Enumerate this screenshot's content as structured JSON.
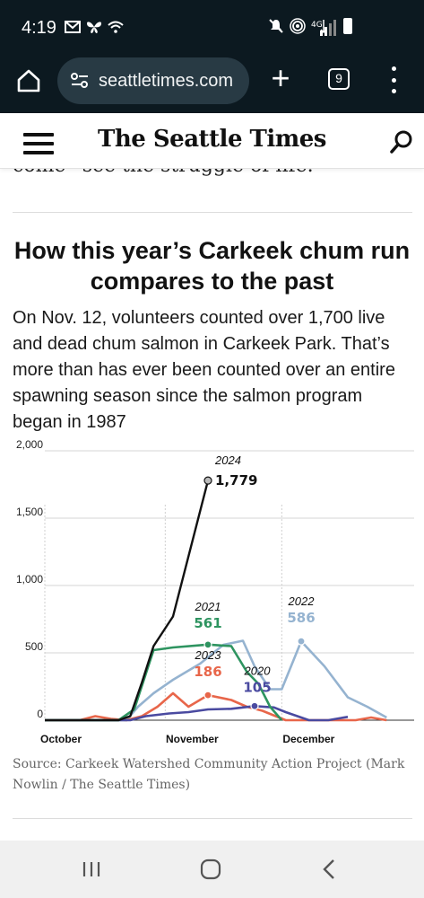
{
  "status": {
    "time": "4:19"
  },
  "browser": {
    "url": "seattletimes.com",
    "tab_count": "9"
  },
  "site": {
    "logo": "The Seattle Times"
  },
  "article": {
    "cutoff_text": "come” see the struggle of life.”",
    "headline": "How this year’s Carkeek chum run compares to the past",
    "intro": "On Nov. 12, volunteers counted over 1,700 live and dead chum salmon in Carkeek Park. That’s more than has ever been counted over an entire spawning season since the salmon program began in 1987",
    "source": "Source: Carkeek Watershed Community Action Project (Mark Nowlin / The Seattle Times)"
  },
  "chart_data": {
    "type": "line",
    "title": "How this year’s Carkeek chum run compares to the past",
    "xlabel": "",
    "ylabel": "",
    "ylim": [
      0,
      2000
    ],
    "yticks": [
      0,
      500,
      1000,
      1500,
      2000
    ],
    "ytick_labels": [
      "0",
      "500",
      "1,000",
      "1,500",
      "2,000"
    ],
    "xticks": [
      {
        "label": "October",
        "date": "Oct 1"
      },
      {
        "label": "November",
        "date": "Nov 1"
      },
      {
        "label": "December",
        "date": "Dec 1"
      }
    ],
    "x_unit": "date",
    "grid": true,
    "series": [
      {
        "name": "2024",
        "color": "#111111",
        "highlight_value": "1,779",
        "label_color": "#111111",
        "points": [
          [
            "Oct 1",
            0
          ],
          [
            "Oct 20",
            0
          ],
          [
            "Oct 23",
            30
          ],
          [
            "Oct 26",
            280
          ],
          [
            "Oct 29",
            550
          ],
          [
            "Nov 3",
            770
          ],
          [
            "Nov 12",
            1779
          ]
        ]
      },
      {
        "name": "2021",
        "color": "#2e9460",
        "highlight_value": "561",
        "label_color": "#2e9460",
        "points": [
          [
            "Oct 1",
            0
          ],
          [
            "Oct 20",
            0
          ],
          [
            "Oct 24",
            80
          ],
          [
            "Oct 29",
            520
          ],
          [
            "Nov 3",
            540
          ],
          [
            "Nov 12",
            561
          ],
          [
            "Nov 18",
            550
          ],
          [
            "Nov 22",
            360
          ],
          [
            "Nov 25",
            270
          ],
          [
            "Nov 28",
            100
          ],
          [
            "Dec 1",
            0
          ]
        ]
      },
      {
        "name": "2022",
        "color": "#95b3d0",
        "highlight_value": "586",
        "label_color": "#95b3d0",
        "points": [
          [
            "Oct 1",
            0
          ],
          [
            "Oct 22",
            0
          ],
          [
            "Oct 25",
            100
          ],
          [
            "Oct 29",
            200
          ],
          [
            "Nov 3",
            300
          ],
          [
            "Nov 10",
            420
          ],
          [
            "Nov 16",
            560
          ],
          [
            "Nov 21",
            590
          ],
          [
            "Nov 24",
            400
          ],
          [
            "Nov 28",
            230
          ],
          [
            "Dec 1",
            230
          ],
          [
            "Dec 6",
            586
          ],
          [
            "Dec 12",
            400
          ],
          [
            "Dec 18",
            170
          ],
          [
            "Dec 23",
            100
          ],
          [
            "Dec 28",
            20
          ]
        ]
      },
      {
        "name": "2023",
        "color": "#e8664a",
        "highlight_value": "186",
        "label_color": "#e8664a",
        "points": [
          [
            "Oct 1",
            0
          ],
          [
            "Oct 10",
            0
          ],
          [
            "Oct 14",
            30
          ],
          [
            "Oct 18",
            10
          ],
          [
            "Oct 22",
            0
          ],
          [
            "Oct 26",
            30
          ],
          [
            "Oct 30",
            100
          ],
          [
            "Nov 3",
            200
          ],
          [
            "Nov 7",
            100
          ],
          [
            "Nov 12",
            186
          ],
          [
            "Nov 18",
            150
          ],
          [
            "Nov 22",
            100
          ],
          [
            "Nov 26",
            70
          ],
          [
            "Dec 2",
            0
          ],
          [
            "Dec 20",
            0
          ],
          [
            "Dec 24",
            20
          ],
          [
            "Dec 28",
            0
          ]
        ]
      },
      {
        "name": "2020",
        "color": "#4a4aa0",
        "highlight_value": "105",
        "label_color": "#4a4aa0",
        "points": [
          [
            "Oct 1",
            0
          ],
          [
            "Oct 23",
            0
          ],
          [
            "Oct 27",
            30
          ],
          [
            "Nov 2",
            50
          ],
          [
            "Nov 7",
            60
          ],
          [
            "Nov 12",
            80
          ],
          [
            "Nov 18",
            85
          ],
          [
            "Nov 24",
            105
          ],
          [
            "Nov 29",
            95
          ],
          [
            "Dec 2",
            60
          ],
          [
            "Dec 8",
            0
          ],
          [
            "Dec 13",
            0
          ],
          [
            "Dec 18",
            25
          ]
        ]
      }
    ],
    "source": "Source: Carkeek Watershed Community Action Project (Mark Nowlin / The Seattle Times)"
  }
}
